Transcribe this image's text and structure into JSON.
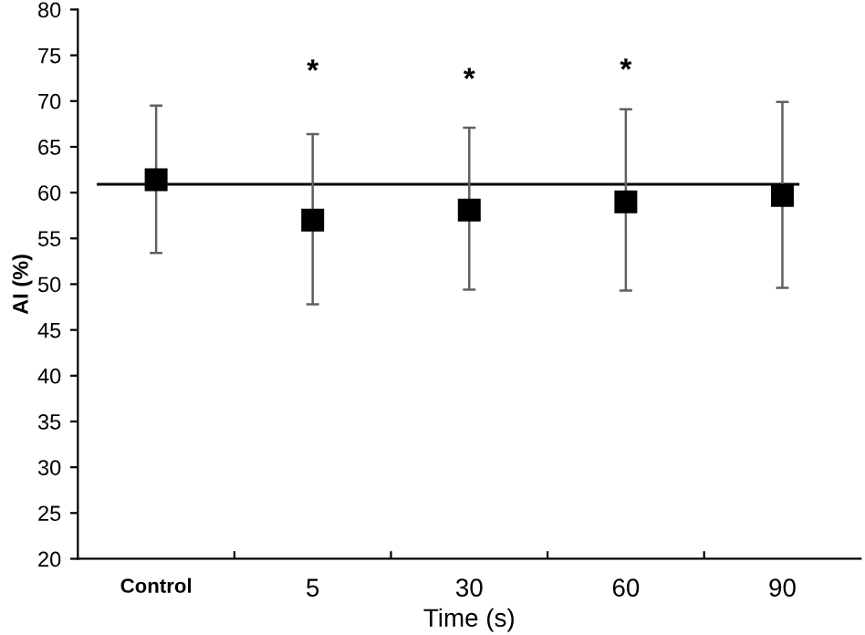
{
  "chart_data": {
    "type": "scatter",
    "xlabel": "Time (s)",
    "ylabel": "AI (%)",
    "categories": [
      "Control",
      "5",
      "30",
      "60",
      "90"
    ],
    "series": [
      {
        "color": "#000000",
        "values": [
          61.4,
          57.0,
          58.1,
          59.0,
          59.7
        ],
        "errors": [
          [
            53.4,
            69.5
          ],
          [
            47.8,
            66.4
          ],
          [
            49.4,
            67.1
          ],
          [
            49.3,
            69.1
          ],
          [
            49.6,
            69.9
          ]
        ]
      }
    ],
    "marker": "square",
    "ylim": [
      20,
      80
    ],
    "yticks": [
      20,
      25,
      30,
      35,
      40,
      45,
      50,
      55,
      60,
      65,
      70,
      75,
      80
    ],
    "ref_lines": [
      {
        "axis": "y",
        "value": 60.9,
        "color": "#000000"
      }
    ],
    "annotations": [
      "*",
      "*",
      "*"
    ],
    "grid": false,
    "legend": false
  }
}
